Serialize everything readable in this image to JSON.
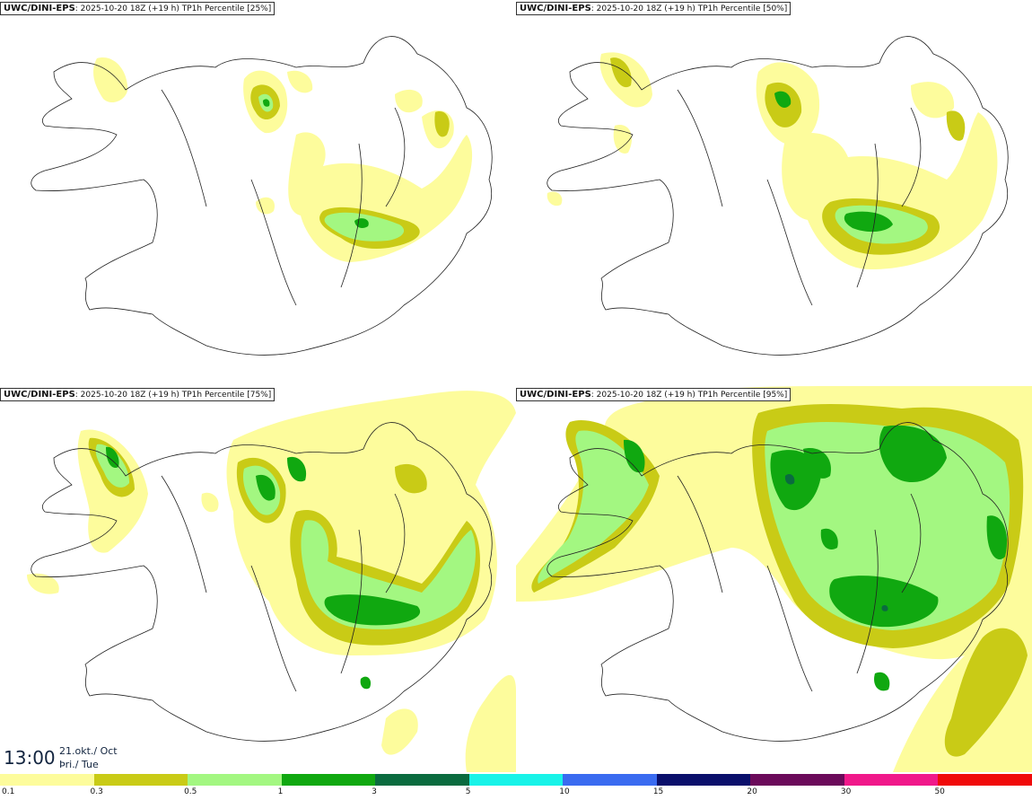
{
  "panels": [
    {
      "model": "UWC/DINI-EPS",
      "run": ": 2025-10-20 18Z (+19 h) TP1h Percentile [25%]",
      "percentile": 25
    },
    {
      "model": "UWC/DINI-EPS",
      "run": ": 2025-10-20 18Z (+19 h) TP1h Percentile [50%]",
      "percentile": 50
    },
    {
      "model": "UWC/DINI-EPS",
      "run": ": 2025-10-20 18Z (+19 h) TP1h Percentile [75%]",
      "percentile": 75
    },
    {
      "model": "UWC/DINI-EPS",
      "run": ": 2025-10-20 18Z (+19 h) TP1h Percentile [95%]",
      "percentile": 95
    }
  ],
  "time": {
    "clock": "13:00",
    "date": "21.okt./ Oct",
    "weekday": "Þri./ Tue"
  },
  "legend": {
    "ticks": [
      "0.1",
      "0.3",
      "0.5",
      "1",
      "3",
      "5",
      "10",
      "15",
      "20",
      "30",
      "50"
    ],
    "colors": [
      "#fdfc9c",
      "#c9cb16",
      "#a3f781",
      "#10a810",
      "#0a6b3f",
      "#18f3e8",
      "#3a6bf0",
      "#0a0f6b",
      "#6b0a5a",
      "#f0188a",
      "#f00a0a"
    ]
  },
  "intensity_colors": {
    "light": "#fdfc9c",
    "low": "#c9cb16",
    "mid": "#a3f781",
    "high": "#10a810",
    "heavy": "#0a6b3f"
  }
}
